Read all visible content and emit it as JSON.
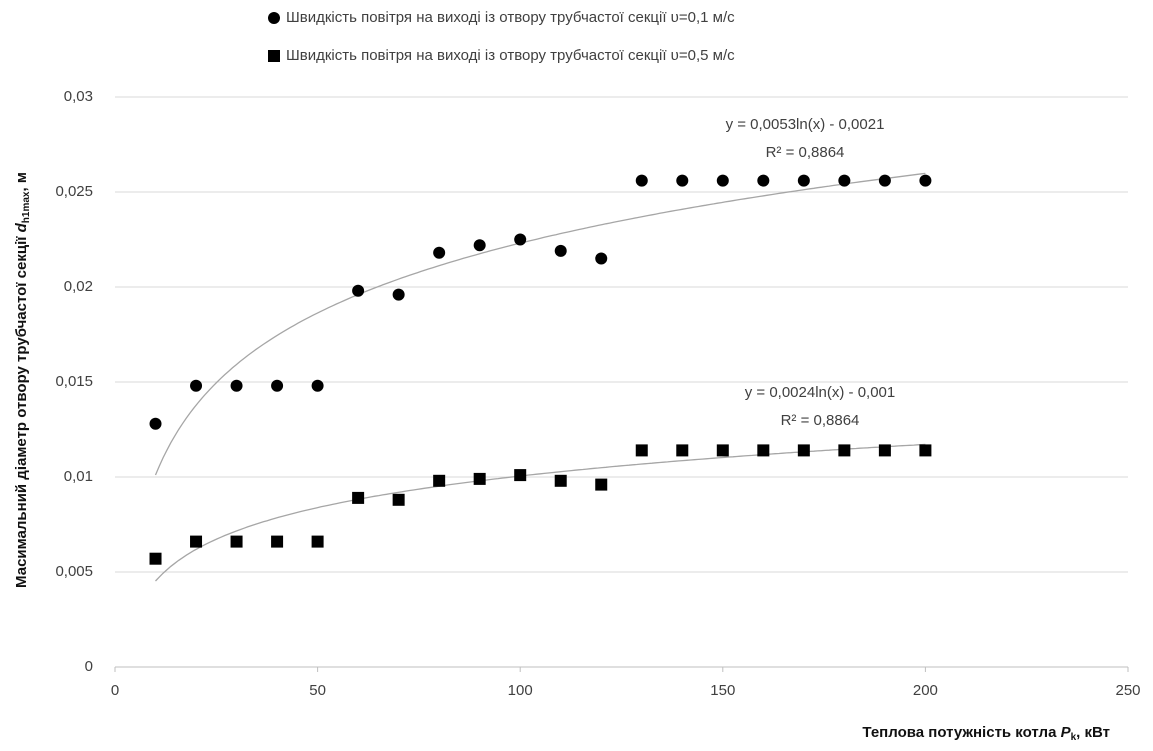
{
  "chart_data": {
    "type": "scatter",
    "y_label": [
      "Масимальний діаметр отвору трубчастої секції ",
      "d",
      "h1max",
      ", м"
    ],
    "x_label": [
      "Теплова потужність котла ",
      "P",
      "k",
      ", кВт"
    ],
    "x": [
      10,
      20,
      30,
      40,
      50,
      60,
      70,
      80,
      90,
      100,
      110,
      120,
      130,
      140,
      150,
      160,
      170,
      180,
      190,
      200
    ],
    "series": [
      {
        "name": "Швидкість повітря на виході із отвору трубчастої секції υ=0,1 м/с",
        "marker": "circle",
        "color": "#000000",
        "values": [
          0.0128,
          0.0148,
          0.0148,
          0.0148,
          0.0148,
          0.0198,
          0.0196,
          0.0218,
          0.0222,
          0.0225,
          0.0219,
          0.0215,
          0.0256,
          0.0256,
          0.0256,
          0.0256,
          0.0256,
          0.0256,
          0.0256,
          0.0256
        ]
      },
      {
        "name": "Швидкість повітря на виході із отвору трубчастої секції υ=0,5 м/с",
        "marker": "square",
        "color": "#000000",
        "values": [
          0.0057,
          0.0066,
          0.0066,
          0.0066,
          0.0066,
          0.0089,
          0.0088,
          0.0098,
          0.0099,
          0.0101,
          0.0098,
          0.0096,
          0.0114,
          0.0114,
          0.0114,
          0.0114,
          0.0114,
          0.0114,
          0.0114,
          0.0114
        ]
      }
    ],
    "trendlines": [
      {
        "equation": "y = 0,0053ln(x) - 0,0021",
        "r2": "R² = 0,8864",
        "coefficients": [
          0.0053,
          -0.0021
        ]
      },
      {
        "equation": "y = 0,0024ln(x) - 0,001",
        "r2": "R² = 0,8864",
        "coefficients": [
          0.0024,
          -0.001
        ]
      }
    ],
    "xlim": [
      0,
      250
    ],
    "xticks": [
      0,
      50,
      100,
      150,
      200,
      250
    ],
    "ylim": [
      0,
      0.03
    ],
    "yticks": [
      0,
      {
        "value": 0.005,
        "label": "0,005"
      },
      {
        "value": 0.01,
        "label": "0,01"
      },
      {
        "value": 0.015,
        "label": "0,015"
      },
      {
        "value": 0.02,
        "label": "0,02"
      },
      {
        "value": 0.025,
        "label": "0,025"
      },
      {
        "value": 0.03,
        "label": "0,03"
      }
    ],
    "grid": true,
    "legend": "top"
  }
}
